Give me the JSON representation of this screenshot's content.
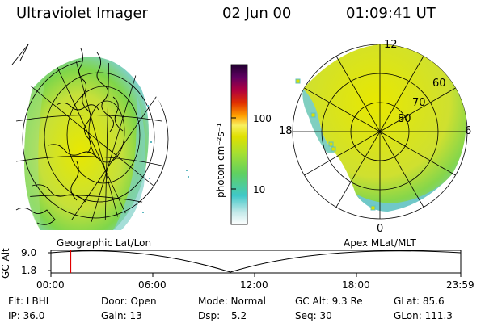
{
  "header": {
    "instrument": "Ultraviolet Imager",
    "date": "02 Jun 00",
    "time": "01:09:41 UT"
  },
  "colorbar": {
    "unit_label": "photon cm⁻²s⁻¹",
    "ticks": [
      "100",
      "10"
    ]
  },
  "polar_plot": {
    "mlt_labels": [
      "12",
      "18",
      "6",
      "0"
    ],
    "lat_labels": [
      "60",
      "70",
      "80"
    ]
  },
  "projections": {
    "left_label": "Geographic Lat/Lon",
    "right_label": "Apex MLat/MLT"
  },
  "altitude_plot": {
    "y_title": "GC Alt",
    "y_ticks": [
      "9.0",
      "1.8"
    ],
    "x_ticks": [
      "00:00",
      "06:00",
      "12:00",
      "18:00",
      "23:59"
    ],
    "marker_time_hours": 1.16
  },
  "info": {
    "flt": "Flt: LBHL",
    "door": "Door: Open",
    "mode": "Mode: Normal",
    "gc_alt": "GC Alt: 9.3 Re",
    "glat": "GLat: 85.6",
    "ip": "IP: 36.0",
    "gain": "Gain: 13",
    "dsp_label": "Dsp:",
    "dsp_value": "5.2",
    "seq": "Seq: 30",
    "glon": "GLon: 111.3"
  },
  "colors": {
    "accent_marker": "#e00000",
    "aurora_high": "#c8d800",
    "aurora_mid": "#7fd64a",
    "aurora_low": "#60c8c8"
  }
}
